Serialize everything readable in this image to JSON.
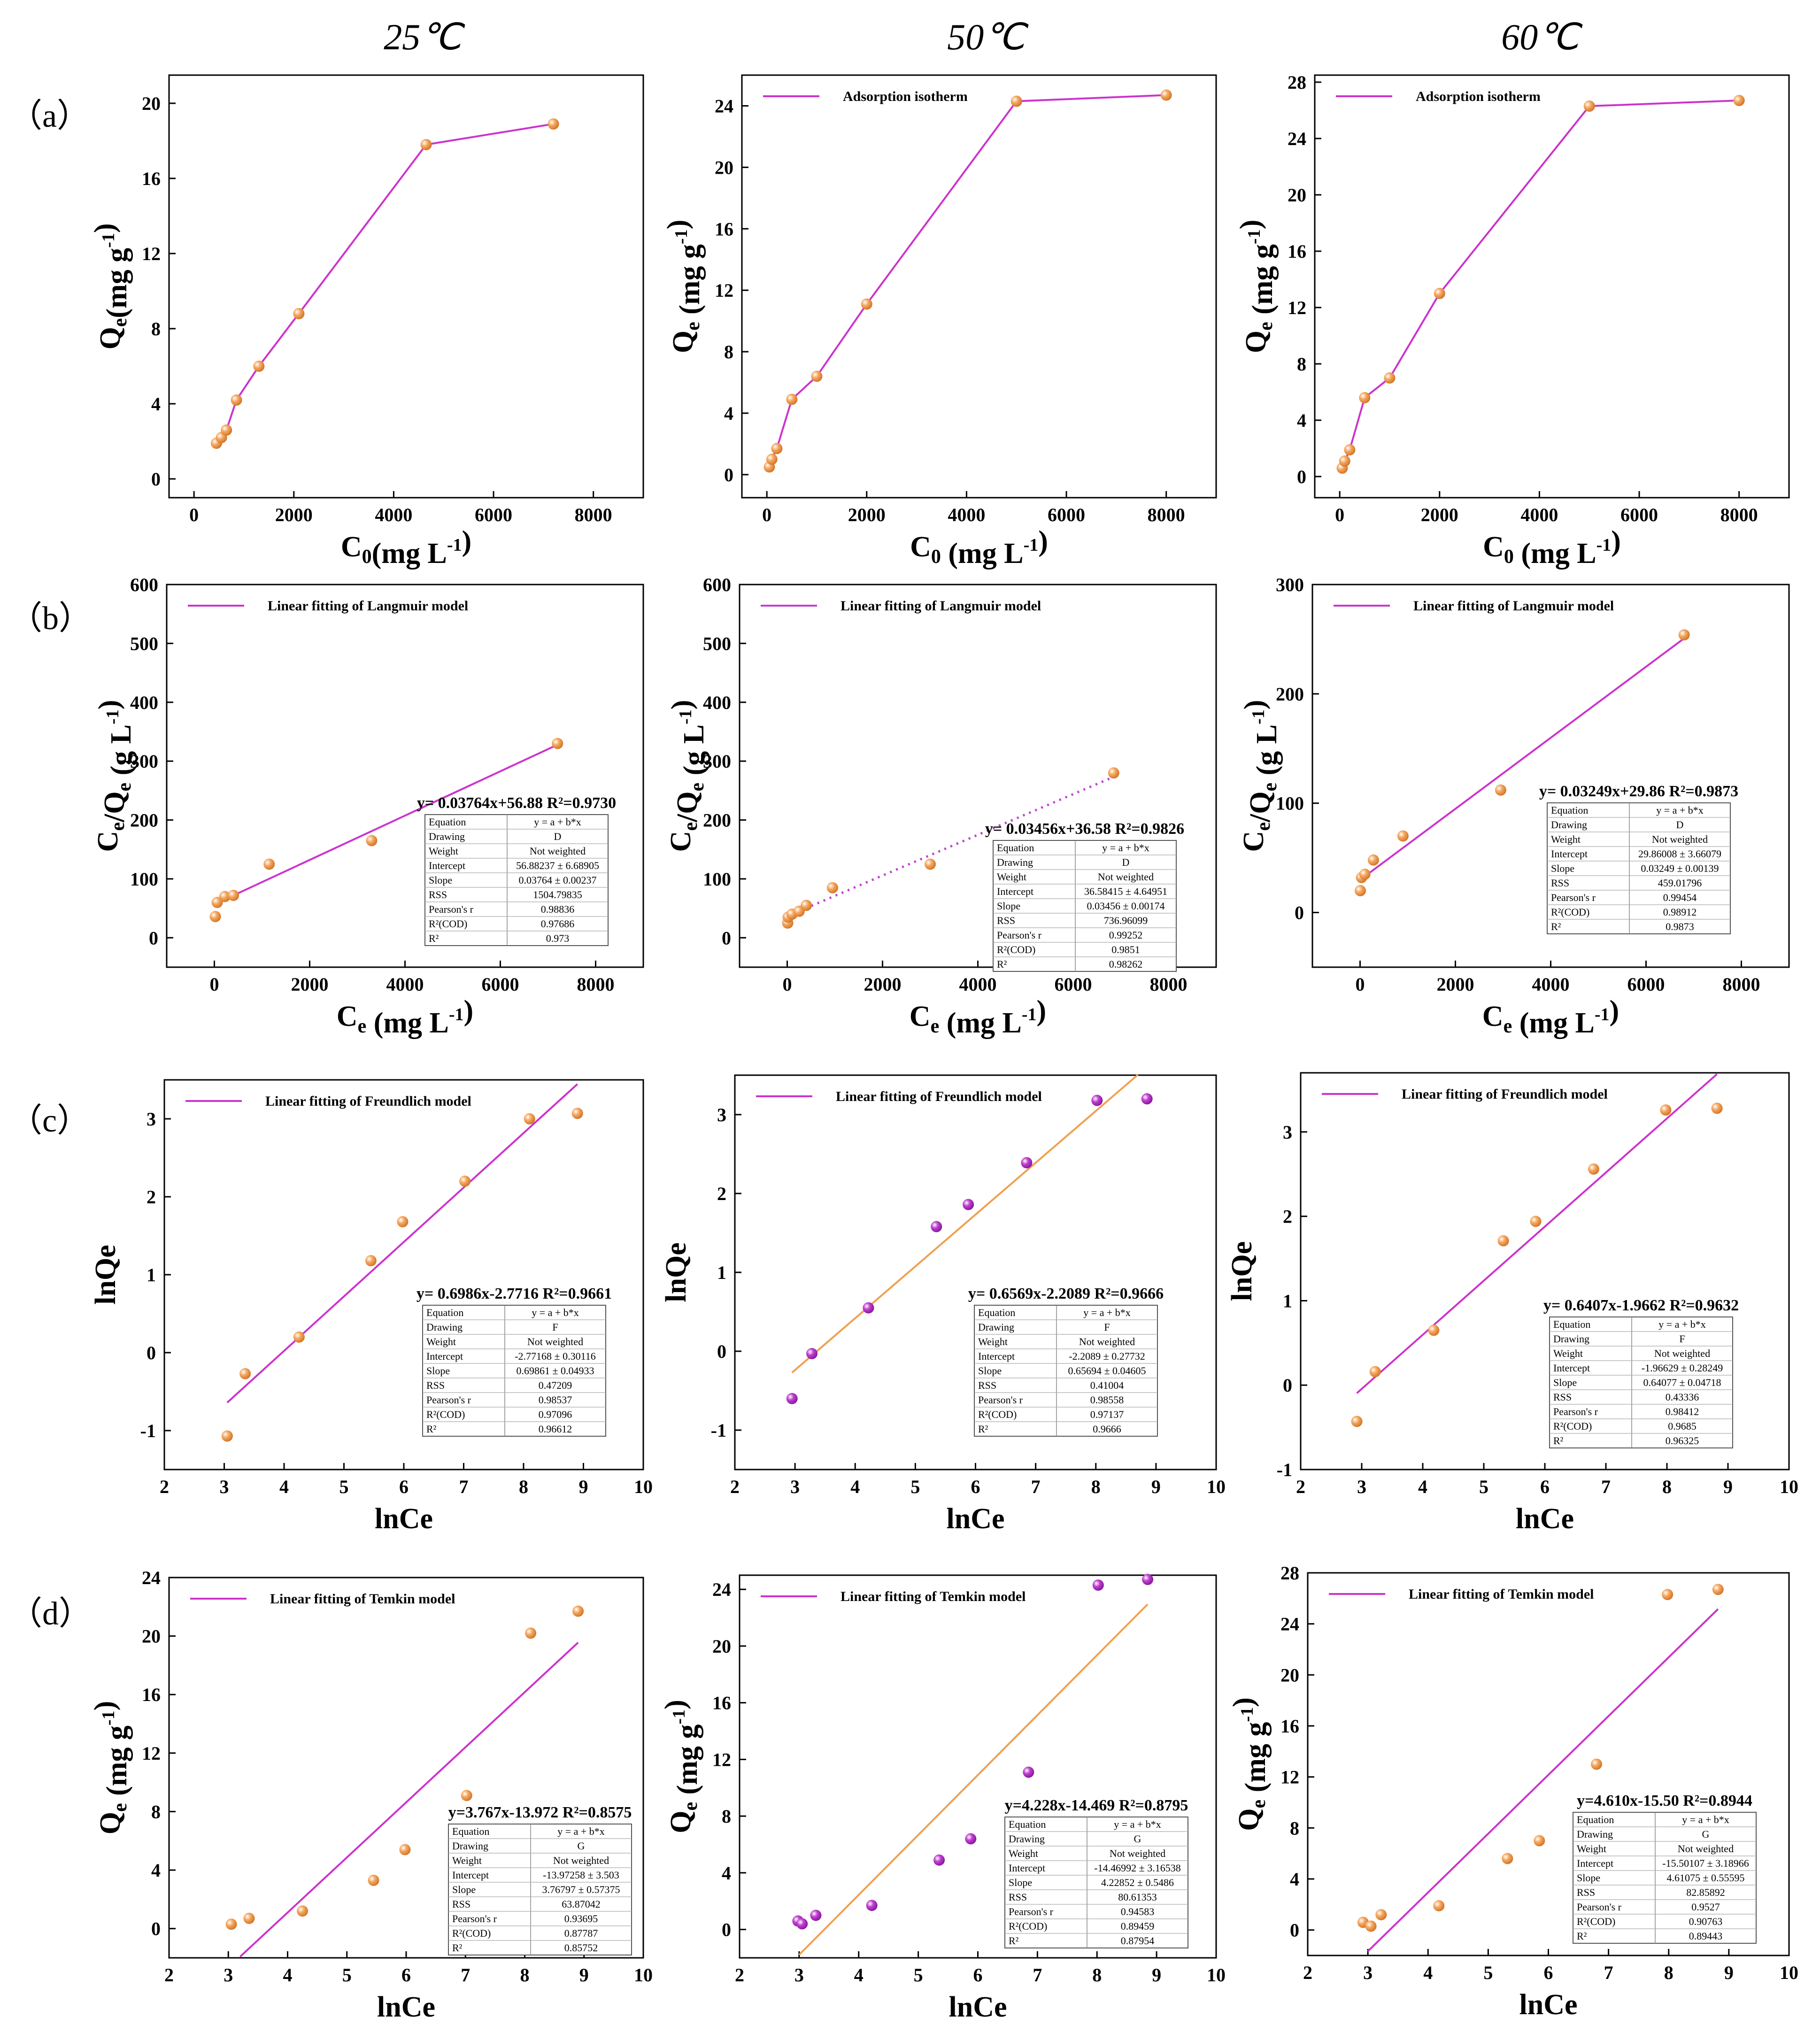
{
  "column_headers": [
    "25℃",
    "50℃",
    "60℃"
  ],
  "row_labels": [
    "（a）",
    "（b）",
    "（c）",
    "（d）"
  ],
  "table_keys": [
    "Equation",
    "Drawing",
    "Weight",
    "Intercept",
    "Slope",
    "RSS",
    "Pearson's r",
    "R²(COD)",
    "R²"
  ],
  "colors": {
    "pink": "#cc33cc",
    "orange": "#f5a860",
    "orange_dark": "#d4782c",
    "magenta_dot": "#c040d0",
    "orange_line": "#f0a050"
  },
  "chart_data": [
    {
      "id": "a25",
      "type": "line",
      "xlabel": "C0(mg L-1)",
      "ylabel": "Qe(mg g-1)",
      "xlim": [
        -500,
        9000
      ],
      "ylim": [
        -1,
        21.5
      ],
      "xticks": [
        0,
        2000,
        4000,
        6000,
        8000
      ],
      "yticks": [
        0,
        4,
        8,
        12,
        16,
        20
      ],
      "x": [
        450,
        550,
        650,
        850,
        1300,
        2100,
        4650,
        7200
      ],
      "y": [
        1.9,
        2.2,
        2.6,
        4.2,
        6.0,
        8.8,
        17.8,
        18.9
      ],
      "legend": "",
      "dot": "orange",
      "line": "pink"
    },
    {
      "id": "a50",
      "type": "line",
      "xlabel": "C0 (mg L-1)",
      "ylabel": "Qe (mg g-1)",
      "xlim": [
        -500,
        9000
      ],
      "ylim": [
        -1.5,
        26
      ],
      "xticks": [
        0,
        2000,
        4000,
        6000,
        8000
      ],
      "yticks": [
        0,
        4,
        8,
        12,
        16,
        20,
        24
      ],
      "x": [
        50,
        100,
        200,
        500,
        1000,
        2000,
        5000,
        8000
      ],
      "y": [
        0.5,
        1.0,
        1.7,
        4.9,
        6.4,
        11.1,
        24.3,
        24.7
      ],
      "legend": "Adsorption isotherm",
      "dot": "orange",
      "line": "pink"
    },
    {
      "id": "a60",
      "type": "line",
      "xlabel": "C0 (mg L-1)",
      "ylabel": "Qe (mg g-1)",
      "xlim": [
        -500,
        9000
      ],
      "ylim": [
        -1.5,
        28.5
      ],
      "xticks": [
        0,
        2000,
        4000,
        6000,
        8000
      ],
      "yticks": [
        0,
        4,
        8,
        12,
        16,
        20,
        24,
        28
      ],
      "x": [
        50,
        100,
        200,
        500,
        1000,
        2000,
        5000,
        8000
      ],
      "y": [
        0.6,
        1.1,
        1.9,
        5.6,
        7.0,
        13.0,
        26.3,
        26.7
      ],
      "legend": "Adsorption isotherm",
      "dot": "orange",
      "line": "pink"
    },
    {
      "id": "b25",
      "type": "scatter",
      "xlabel": "Ce (mg L-1)",
      "ylabel": "Ce/Qe (g L-1)",
      "xlim": [
        -1000,
        9000
      ],
      "ylim": [
        -50,
        600
      ],
      "xticks": [
        0,
        2000,
        4000,
        6000,
        8000
      ],
      "yticks": [
        0,
        100,
        200,
        300,
        400,
        500,
        600
      ],
      "x": [
        20,
        60,
        220,
        400,
        1150,
        3300,
        7200
      ],
      "y": [
        36,
        60,
        70,
        72,
        125,
        165,
        330
      ],
      "fit": {
        "slope": 0.03764,
        "intercept": 56.88,
        "x0": 0,
        "x1": 7200,
        "style": "solid",
        "color": "pink"
      },
      "legend": "Linear fitting of Langmuir model",
      "dot": "orange",
      "equation": "y= 0.03764x+56.88  R²=0.9730",
      "table": [
        "y = a + b*x",
        "D",
        "Not weighted",
        "56.88237 ± 6.68905",
        "0.03764 ± 0.00237",
        "1504.79835",
        "0.98836",
        "0.97686",
        "0.973"
      ]
    },
    {
      "id": "b50",
      "type": "scatter",
      "xlabel": "Ce (mg L-1)",
      "ylabel": "Ce/Qe (g L-1)",
      "xlim": [
        -1000,
        9000
      ],
      "ylim": [
        -50,
        600
      ],
      "xticks": [
        0,
        2000,
        4000,
        6000,
        8000
      ],
      "yticks": [
        0,
        100,
        200,
        300,
        400,
        500,
        600
      ],
      "x": [
        10,
        20,
        100,
        250,
        400,
        950,
        3000,
        6850
      ],
      "y": [
        25,
        35,
        40,
        45,
        55,
        85,
        125,
        280
      ],
      "fit": {
        "slope": 0.03456,
        "intercept": 36.58,
        "x0": 0,
        "x1": 6850,
        "style": "dotted",
        "color": "magenta_dot"
      },
      "legend": "Linear fitting of Langmuir model",
      "dot": "orange",
      "equation": "y= 0.03456x+36.58  R²=0.9826",
      "table": [
        "y = a + b*x",
        "D",
        "Not weighted",
        "36.58415 ± 4.64951",
        "0.03456 ± 0.00174",
        "736.96099",
        "0.99252",
        "0.9851",
        "0.98262"
      ]
    },
    {
      "id": "b60",
      "type": "scatter",
      "xlabel": "Ce (mg L-1)",
      "ylabel": "Ce/Qe (g L-1)",
      "xlim": [
        -1000,
        9000
      ],
      "ylim": [
        -50,
        300
      ],
      "xticks": [
        0,
        2000,
        4000,
        6000,
        8000
      ],
      "yticks": [
        0,
        100,
        200,
        300
      ],
      "x": [
        5,
        30,
        100,
        280,
        900,
        2950,
        6800
      ],
      "y": [
        20,
        32,
        35,
        48,
        70,
        112,
        254
      ],
      "fit": {
        "slope": 0.03249,
        "intercept": 29.86,
        "x0": 0,
        "x1": 6800,
        "style": "solid",
        "color": "pink"
      },
      "legend": "Linear fitting of Langmuir model",
      "dot": "orange",
      "equation": "y= 0.03249x+29.86  R²=0.9873",
      "table": [
        "y = a + b*x",
        "D",
        "Not weighted",
        "29.86008 ± 3.66079",
        "0.03249 ± 0.00139",
        "459.01796",
        "0.99454",
        "0.98912",
        "0.9873"
      ]
    },
    {
      "id": "c25",
      "type": "scatter",
      "xlabel": "lnCe",
      "ylabel": "lnQe",
      "xlim": [
        2,
        10
      ],
      "ylim": [
        -1.5,
        3.5
      ],
      "xticks": [
        2,
        3,
        4,
        5,
        6,
        7,
        8,
        9,
        10
      ],
      "yticks": [
        -1,
        0,
        1,
        2,
        3
      ],
      "x": [
        3.05,
        3.35,
        4.25,
        5.45,
        5.98,
        7.02,
        8.1,
        8.9
      ],
      "y": [
        -1.07,
        -0.27,
        0.2,
        1.18,
        1.68,
        2.2,
        3.0,
        3.07
      ],
      "fit": {
        "slope": 0.6986,
        "intercept": -2.7716,
        "x0": 3.05,
        "x1": 8.9,
        "style": "solid",
        "color": "pink"
      },
      "legend": "Linear fitting of Freundlich model",
      "dot": "orange",
      "equation": "y= 0.6986x-2.7716  R²=0.9661",
      "table": [
        "y = a + b*x",
        "F",
        "Not weighted",
        "-2.77168 ± 0.30116",
        "0.69861 ± 0.04933",
        "0.47209",
        "0.98537",
        "0.97096",
        "0.96612"
      ]
    },
    {
      "id": "c50",
      "type": "scatter",
      "xlabel": "lnCe",
      "ylabel": "lnQe",
      "xlim": [
        2,
        10
      ],
      "ylim": [
        -1.5,
        3.5
      ],
      "xticks": [
        2,
        3,
        4,
        5,
        6,
        7,
        8,
        9,
        10
      ],
      "yticks": [
        -1,
        0,
        1,
        2,
        3
      ],
      "x": [
        2.95,
        3.28,
        4.22,
        5.35,
        5.88,
        6.85,
        8.02,
        8.85
      ],
      "y": [
        -0.6,
        -0.03,
        0.55,
        1.58,
        1.86,
        2.39,
        3.18,
        3.2
      ],
      "fit": {
        "slope": 0.6569,
        "intercept": -2.2089,
        "x0": 2.95,
        "x1": 8.7,
        "style": "solid",
        "color": "orange_line"
      },
      "legend": "Linear fitting of Freundlich model",
      "dot": "magenta_dot",
      "equation": "y= 0.6569x-2.2089  R²=0.9666",
      "table": [
        "y = a + b*x",
        "F",
        "Not weighted",
        "-2.2089 ± 0.27732",
        "0.65694 ± 0.04605",
        "0.41004",
        "0.98558",
        "0.97137",
        "0.9666"
      ]
    },
    {
      "id": "c60",
      "type": "scatter",
      "xlabel": "lnCe",
      "ylabel": "lnQe",
      "xlim": [
        2,
        10
      ],
      "ylim": [
        -1,
        3.7
      ],
      "xticks": [
        2,
        3,
        4,
        5,
        6,
        7,
        8,
        9,
        10
      ],
      "yticks": [
        -1,
        0,
        1,
        2,
        3
      ],
      "x": [
        2.92,
        3.22,
        4.18,
        5.32,
        5.85,
        6.8,
        7.98,
        8.82
      ],
      "y": [
        -0.43,
        0.16,
        0.65,
        1.71,
        1.94,
        2.56,
        3.26,
        3.28
      ],
      "fit": {
        "slope": 0.6407,
        "intercept": -1.9662,
        "x0": 2.92,
        "x1": 8.82,
        "style": "solid",
        "color": "pink"
      },
      "legend": "Linear fitting of Freundlich model",
      "dot": "orange",
      "equation": "y= 0.6407x-1.9662  R²=0.9632",
      "table": [
        "y = a + b*x",
        "F",
        "Not weighted",
        "-1.96629 ± 0.28249",
        "0.64077 ± 0.04718",
        "0.43336",
        "0.98412",
        "0.9685",
        "0.96325"
      ]
    },
    {
      "id": "d25",
      "type": "scatter",
      "xlabel": "lnCe",
      "ylabel": "Qe (mg g-1)",
      "xlim": [
        2,
        10
      ],
      "ylim": [
        -2,
        24
      ],
      "xticks": [
        2,
        3,
        4,
        5,
        6,
        7,
        8,
        9,
        10
      ],
      "yticks": [
        0,
        4,
        8,
        12,
        16,
        20,
        24
      ],
      "x": [
        3.05,
        3.35,
        4.25,
        5.45,
        5.98,
        7.02,
        8.1,
        8.9
      ],
      "y": [
        0.3,
        0.7,
        1.2,
        3.3,
        5.4,
        9.1,
        20.2,
        21.7
      ],
      "fit": {
        "slope": 3.767,
        "intercept": -13.972,
        "x0": 3.2,
        "x1": 8.9,
        "style": "solid",
        "color": "pink"
      },
      "legend": "Linear fitting of Temkin model",
      "dot": "orange",
      "equation": "y=3.767x-13.972  R²=0.8575",
      "table": [
        "y = a + b*x",
        "G",
        "Not weighted",
        "-13.97258 ± 3.503",
        "3.76797 ± 0.57375",
        "63.87042",
        "0.93695",
        "0.87787",
        "0.85752"
      ]
    },
    {
      "id": "d50",
      "type": "scatter",
      "xlabel": "lnCe",
      "ylabel": "Qe (mg g-1)",
      "xlim": [
        2,
        10
      ],
      "ylim": [
        -2,
        25
      ],
      "xticks": [
        2,
        3,
        4,
        5,
        6,
        7,
        8,
        9,
        10
      ],
      "yticks": [
        0,
        4,
        8,
        12,
        16,
        20,
        24
      ],
      "x": [
        2.98,
        3.05,
        3.28,
        4.22,
        5.35,
        5.88,
        6.85,
        8.02,
        8.85
      ],
      "y": [
        0.6,
        0.4,
        1.0,
        1.7,
        4.9,
        6.4,
        11.1,
        24.3,
        24.7
      ],
      "fit": {
        "slope": 4.228,
        "intercept": -14.469,
        "x0": 3.0,
        "x1": 8.85,
        "style": "solid",
        "color": "orange_line"
      },
      "legend": "Linear fitting of Temkin model",
      "dot": "magenta_dot",
      "equation": "y=4.228x-14.469  R²=0.8795",
      "table": [
        "y = a + b*x",
        "G",
        "Not weighted",
        "-14.46992 ± 3.16538",
        "4.22852 ± 0.5486",
        "80.61353",
        "0.94583",
        "0.89459",
        "0.87954"
      ]
    },
    {
      "id": "d60",
      "type": "scatter",
      "xlabel": "lnCe",
      "ylabel": "Qe (mg g-1)",
      "xlim": [
        2,
        10
      ],
      "ylim": [
        -2,
        28
      ],
      "xticks": [
        2,
        3,
        4,
        5,
        6,
        7,
        8,
        9,
        10
      ],
      "yticks": [
        0,
        4,
        8,
        12,
        16,
        20,
        24,
        28
      ],
      "x": [
        2.92,
        3.05,
        3.22,
        4.18,
        5.32,
        5.85,
        6.8,
        7.98,
        8.82
      ],
      "y": [
        0.6,
        0.3,
        1.2,
        1.9,
        5.6,
        7.0,
        13.0,
        26.3,
        26.7
      ],
      "fit": {
        "slope": 4.61,
        "intercept": -15.5,
        "x0": 3.0,
        "x1": 8.82,
        "style": "solid",
        "color": "pink"
      },
      "legend": "Linear fitting of Temkin model",
      "dot": "orange",
      "equation": "y=4.610x-15.50  R²=0.8944",
      "table": [
        "y = a + b*x",
        "G",
        "Not weighted",
        "-15.50107 ± 3.18966",
        "4.61075 ± 0.55595",
        "82.85892",
        "0.9527",
        "0.90763",
        "0.89443"
      ]
    }
  ]
}
